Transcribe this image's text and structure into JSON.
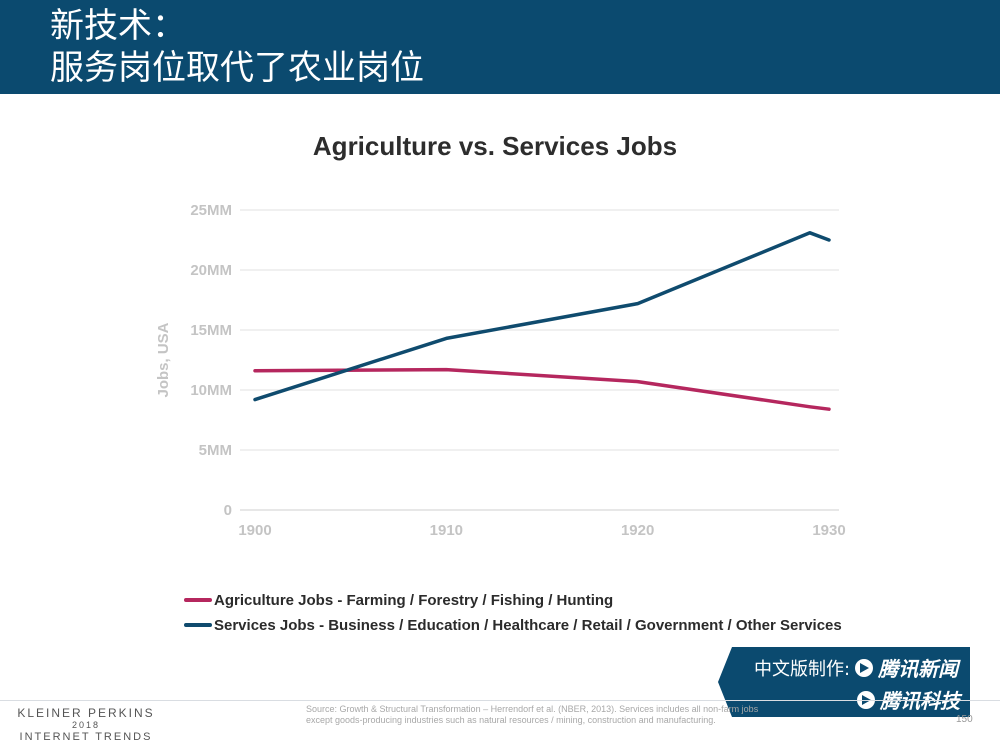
{
  "header": {
    "title_line1": "新技术：",
    "title_line2": "服务岗位取代了农业岗位"
  },
  "chart_data": {
    "type": "line",
    "title": "Agriculture vs. Services Jobs",
    "xlabel": "",
    "ylabel": "Jobs, USA",
    "x": [
      1900,
      1910,
      1920,
      1929,
      1930
    ],
    "xticks": [
      "1900",
      "1910",
      "1920",
      "1930"
    ],
    "xlim": [
      1900,
      1930
    ],
    "ylim": [
      0,
      25
    ],
    "yticks": [
      "0",
      "5MM",
      "10MM",
      "15MM",
      "20MM",
      "25MM"
    ],
    "grid": true,
    "legend_position": "bottom",
    "series": [
      {
        "name": "Agriculture Jobs - Farming / Forestry / Fishing / Hunting",
        "color": "#b5275e",
        "values": [
          11.6,
          11.7,
          10.7,
          8.6,
          8.4
        ]
      },
      {
        "name": "Services Jobs - Business / Education / Healthcare / Retail / Government / Other Services",
        "color": "#0f4b6e",
        "values": [
          9.2,
          14.3,
          17.2,
          23.1,
          22.5
        ]
      }
    ]
  },
  "brand": {
    "line1_prefix": "中文版制作:",
    "line1_name": "腾讯新闻",
    "line2_name": "腾讯科技"
  },
  "footer": {
    "company": "KLEINER PERKINS",
    "year": "2018",
    "report": "INTERNET TRENDS",
    "source_text": "Source: Growth & Structural Transformation – Herrendorf et al. (NBER, 2013). Services includes all non-farm jobs except goods-producing industries such as natural resources / mining, construction and manufacturing.",
    "page_number": "150"
  },
  "colors": {
    "header_bg": "#0b4a6f",
    "agriculture": "#b5275e",
    "services": "#0f4b6e",
    "axis_text": "#c4c4c4",
    "grid": "#dcdcdc"
  }
}
